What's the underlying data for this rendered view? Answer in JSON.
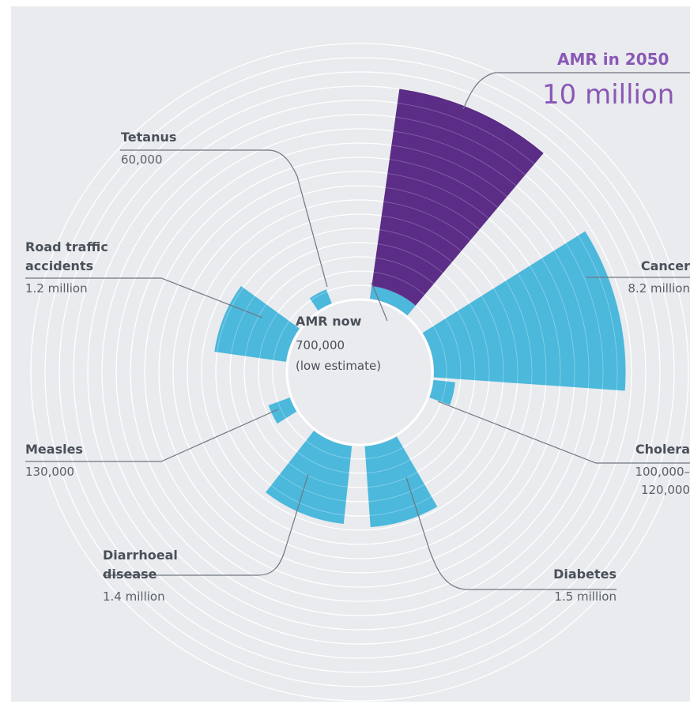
{
  "colors": {
    "background": "#e9ebee",
    "amr_2050": "#5b2d86",
    "other_causes": "#4bb8dc",
    "title_accent": "#8a58b5",
    "label_text": "#4a5059"
  },
  "chart_data": {
    "type": "radial-bar",
    "title": "",
    "center": {
      "name": "AMR now",
      "value_text": "700,000",
      "note": "(low estimate)",
      "value": 700000
    },
    "highlight": {
      "name": "AMR in 2050",
      "value_text": "10 million",
      "value": 10000000
    },
    "categories": [
      {
        "name": "AMR in 2050",
        "value_text": "10 million",
        "value": 10000000
      },
      {
        "name": "Cancer",
        "value_text": "8.2 million",
        "value": 8200000
      },
      {
        "name": "Cholera",
        "value_text": "100,000–120,000",
        "value": 120000
      },
      {
        "name": "Diabetes",
        "value_text": "1.5 million",
        "value": 1500000
      },
      {
        "name": "Diarrhoeal disease",
        "value_text": "1.4 million",
        "value": 1400000
      },
      {
        "name": "Measles",
        "value_text": "130,000",
        "value": 130000
      },
      {
        "name": "Road traffic accidents",
        "value_text": "1.2 million",
        "value": 1200000
      },
      {
        "name": "Tetanus",
        "value_text": "60,000",
        "value": 60000
      }
    ],
    "grid": true
  },
  "labels": {
    "amr2050_name": "AMR in 2050",
    "amr2050_value": "10 million",
    "cancer_name": "Cancer",
    "cancer_value": "8.2 million",
    "cholera_name": "Cholera",
    "cholera_value_1": "100,000–",
    "cholera_value_2": "120,000",
    "diabetes_name": "Diabetes",
    "diabetes_value": "1.5 million",
    "diarrhoeal_name_1": "Diarrhoeal",
    "diarrhoeal_name_2": "disease",
    "diarrhoeal_value": "1.4 million",
    "measles_name": "Measles",
    "measles_value": "130,000",
    "road_name_1": "Road traffic",
    "road_name_2": "accidents",
    "road_value": "1.2 million",
    "tetanus_name": "Tetanus",
    "tetanus_value": "60,000",
    "amr_now_name": "AMR now",
    "amr_now_value": "700,000",
    "amr_now_note": "(low estimate)"
  }
}
